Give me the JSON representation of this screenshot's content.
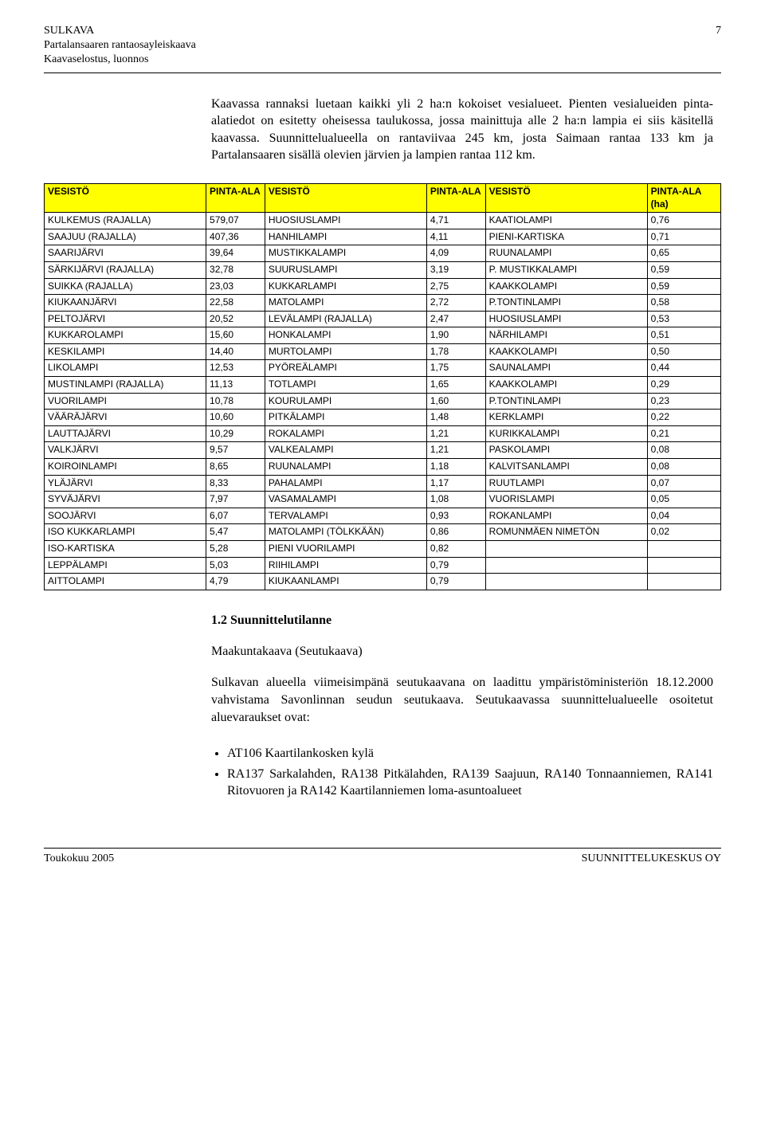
{
  "header": {
    "org": "SULKAVA",
    "line2": "Partalansaaren rantaosayleiskaava",
    "line3": "Kaavaselostus, luonnos",
    "page": "7"
  },
  "para1": "Kaavassa rannaksi luetaan kaikki yli 2 ha:n kokoiset vesialueet. Pienten vesialueiden pinta-alatiedot on esitetty oheisessa taulukossa, jossa mainittuja alle 2 ha:n lampia ei siis käsitellä kaavassa. Suunnittelualueella on rantaviivaa 245 km, josta Saimaan rantaa 133 km ja Partalansaaren sisällä olevien järvien ja lampien rantaa 112 km.",
  "table": {
    "headers": [
      "VESISTÖ",
      "PINTA-ALA",
      "VESISTÖ",
      "PINTA-ALA",
      "VESISTÖ",
      "PINTA-ALA (ha)"
    ],
    "header_bg": "#ffff00",
    "rows": [
      [
        "KULKEMUS (RAJALLA)",
        "579,07",
        "HUOSIUSLAMPI",
        "4,71",
        "KAATIOLAMPI",
        "0,76"
      ],
      [
        "SAAJUU  (RAJALLA)",
        "407,36",
        "HANHILAMPI",
        "4,11",
        "PIENI-KARTISKA",
        "0,71"
      ],
      [
        "SAARIJÄRVI",
        "39,64",
        "MUSTIKKALAMPI",
        "4,09",
        "RUUNALAMPI",
        "0,65"
      ],
      [
        "SÄRKIJÄRVI (RAJALLA)",
        "32,78",
        "SUURUSLAMPI",
        "3,19",
        "P. MUSTIKKALAMPI",
        "0,59"
      ],
      [
        "SUIKKA (RAJALLA)",
        "23,03",
        "KUKKARLAMPI",
        "2,75",
        "KAAKKOLAMPI",
        "0,59"
      ],
      [
        "KIUKAANJÄRVI",
        "22,58",
        "MATOLAMPI",
        "2,72",
        "P.TONTINLAMPI",
        "0,58"
      ],
      [
        "PELTOJÄRVI",
        "20,52",
        "LEVÄLAMPI (RAJALLA)",
        "2,47",
        "HUOSIUSLAMPI",
        "0,53"
      ],
      [
        "KUKKAROLAMPI",
        "15,60",
        "HONKALAMPI",
        "1,90",
        "NÄRHILAMPI",
        "0,51"
      ],
      [
        "KESKILAMPI",
        "14,40",
        "MURTOLAMPI",
        "1,78",
        "KAAKKOLAMPI",
        "0,50"
      ],
      [
        "LIKOLAMPI",
        "12,53",
        "PYÖREÄLAMPI",
        "1,75",
        "SAUNALAMPI",
        "0,44"
      ],
      [
        "MUSTINLAMPI (RAJALLA)",
        "11,13",
        "TOTLAMPI",
        "1,65",
        "KAAKKOLAMPI",
        "0,29"
      ],
      [
        "VUORILAMPI",
        "10,78",
        "KOURULAMPI",
        "1,60",
        "P.TONTINLAMPI",
        "0,23"
      ],
      [
        "VÄÄRÄJÄRVI",
        "10,60",
        "PITKÄLAMPI",
        "1,48",
        "KERKLAMPI",
        "0,22"
      ],
      [
        "LAUTTAJÄRVI",
        "10,29",
        "ROKALAMPI",
        "1,21",
        "KURIKKALAMPI",
        "0,21"
      ],
      [
        "VALKJÄRVI",
        "9,57",
        "VALKEALAMPI",
        "1,21",
        "PASKOLAMPI",
        "0,08"
      ],
      [
        "KOIROINLAMPI",
        "8,65",
        "RUUNALAMPI",
        "1,18",
        "KALVITSANLAMPI",
        "0,08"
      ],
      [
        "YLÄJÄRVI",
        "8,33",
        "PAHALAMPI",
        "1,17",
        "RUUTLAMPI",
        "0,07"
      ],
      [
        "SYVÄJÄRVI",
        "7,97",
        "VASAMALAMPI",
        "1,08",
        "VUORISLAMPI",
        "0,05"
      ],
      [
        "SOOJÄRVI",
        "6,07",
        "TERVALAMPI",
        "0,93",
        "ROKANLAMPI",
        "0,04"
      ],
      [
        "ISO KUKKARLAMPI",
        "5,47",
        "MATOLAMPI (TÖLKKÄÄN)",
        "0,86",
        "ROMUNMÄEN NIMETÖN",
        "0,02"
      ],
      [
        "ISO-KARTISKA",
        "5,28",
        "PIENI VUORILAMPI",
        "0,82",
        "",
        ""
      ],
      [
        "LEPPÄLAMPI",
        "5,03",
        "RIIHILAMPI",
        "0,79",
        "",
        ""
      ],
      [
        "AITTOLAMPI",
        "4,79",
        "KIUKAANLAMPI",
        "0,79",
        "",
        ""
      ]
    ]
  },
  "section": {
    "num_title": "1.2 Suunnittelutilanne",
    "sub": "Maakuntakaava (Seutukaava)",
    "para": "Sulkavan alueella viimeisimpänä seutukaavana on laadittu ympäristöministeriön 18.12.2000 vahvistama Savonlinnan seudun seutukaava. Seutukaavassa suunnittelualueelle osoitetut aluevaraukset ovat:",
    "bullets": [
      "AT106 Kaartilankosken kylä",
      "RA137 Sarkalahden, RA138 Pitkälahden, RA139 Saajuun, RA140 Tonnaanniemen, RA141 Ritovuoren ja RA142 Kaartilanniemen loma-asuntoalueet"
    ]
  },
  "footer": {
    "left": "Toukokuu 2005",
    "right": "SUUNNITTELUKESKUS OY"
  },
  "style": {
    "body_font": "Times New Roman",
    "table_font": "Arial",
    "table_fontsize": 12,
    "body_fontsize": 16,
    "colors": {
      "text": "#000000",
      "background": "#ffffff",
      "table_header_bg": "#ffff00",
      "border": "#000000"
    },
    "col_widths_pct": [
      22,
      8,
      22,
      8,
      22,
      10
    ]
  }
}
